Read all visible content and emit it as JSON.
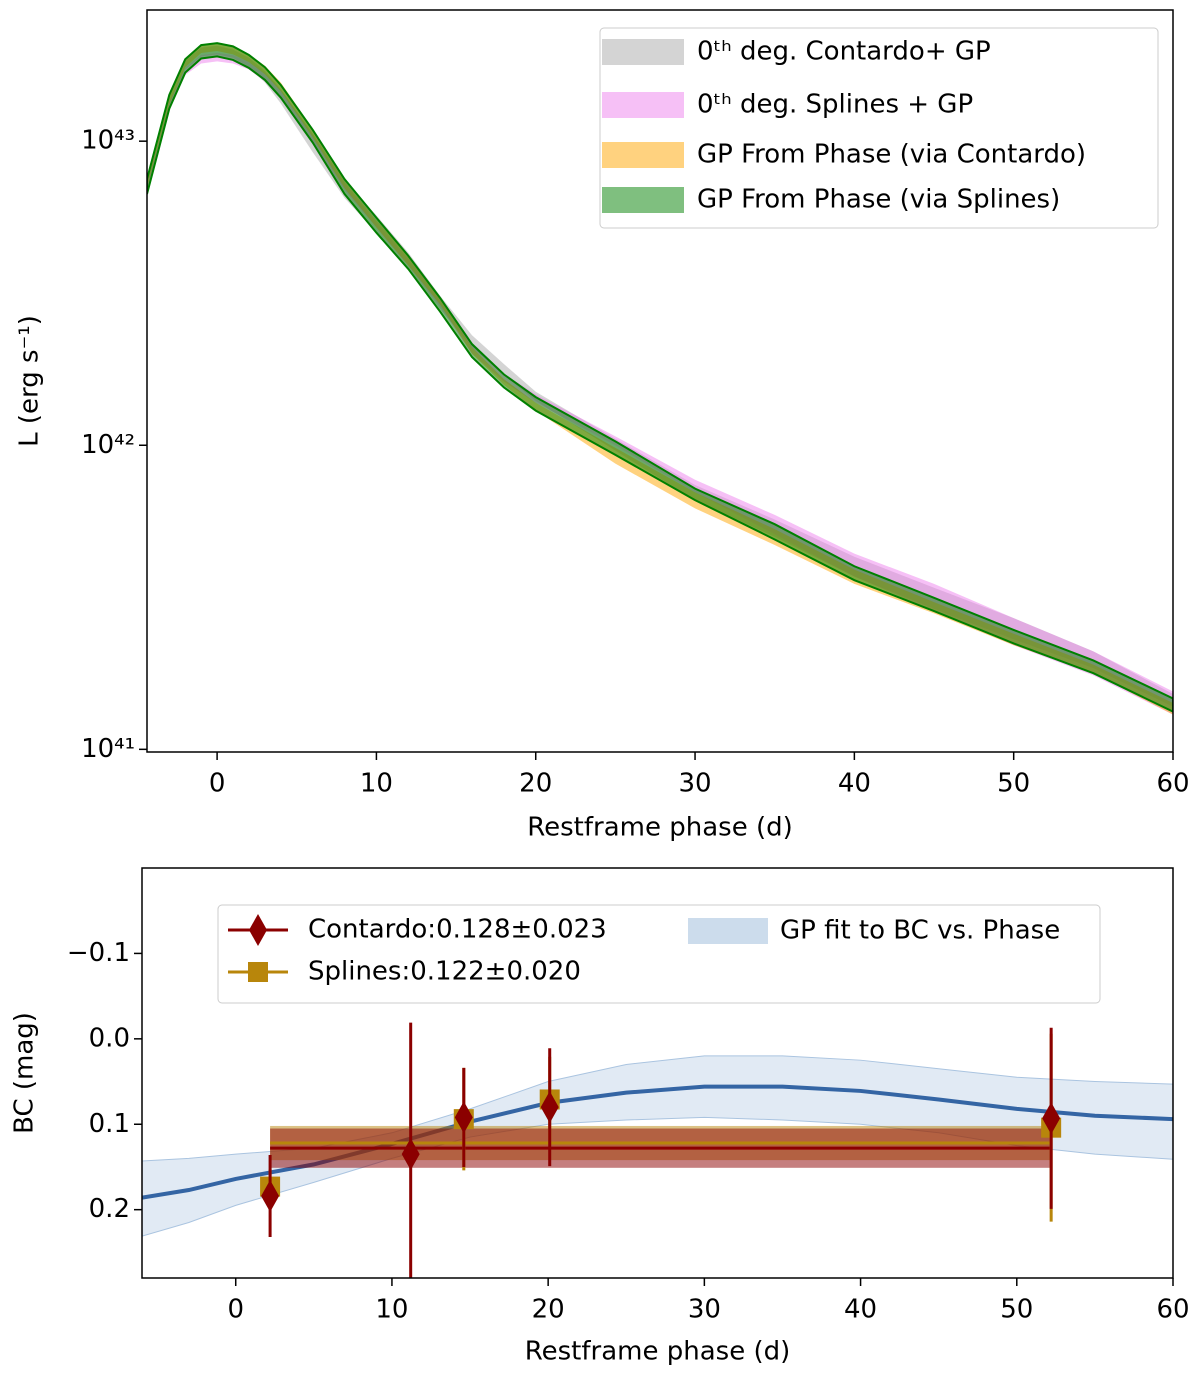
{
  "chart_data": [
    {
      "type": "area",
      "log_y": true,
      "legend": "upper right",
      "xlabel": "Restframe phase (d)",
      "ylabel": "L (erg s⁻¹)",
      "xlim": [
        -4.4,
        60
      ],
      "xticks": [
        0,
        10,
        20,
        30,
        40,
        50,
        60
      ],
      "ylim": [
        9.8e+40,
        2.7e+43
      ],
      "yticks": [
        {
          "value": 1e+41,
          "label": "10⁴¹"
        },
        {
          "value": 1e+42,
          "label": "10⁴²"
        },
        {
          "value": 1e+43,
          "label": "10⁴³"
        }
      ],
      "x": [
        -4.4,
        -3,
        -2,
        -1,
        0,
        1,
        2,
        3,
        4,
        6,
        8,
        10,
        12,
        14,
        16,
        18,
        20,
        25,
        30,
        35,
        40,
        45,
        50,
        55,
        60
      ],
      "series": [
        {
          "name": "0ᵗʰ deg. Contardo+ GP",
          "color": "#aaaaaa",
          "low": [
            6.8e+42,
            1.3e+43,
            1.72e+43,
            1.9e+43,
            1.93e+43,
            1.88e+43,
            1.75e+43,
            1.56e+43,
            1.33e+43,
            9.2e+42,
            6.5e+42,
            5e+42,
            3.8e+42,
            2.8e+42,
            2.1e+42,
            1.7e+42,
            1.4e+42,
            9.6e+41,
            6.6e+41,
            5e+41,
            3.7e+41,
            2.9e+41,
            2.3e+41,
            1.85e+41,
            1.38e+41
          ],
          "high": [
            7.4e+42,
            1.4e+43,
            1.84e+43,
            2.03e+43,
            2.06e+43,
            2e+43,
            1.88e+43,
            1.7e+43,
            1.48e+43,
            1.06e+43,
            7.4e+42,
            5.7e+42,
            4.3e+42,
            3.1e+42,
            2.3e+42,
            1.85e+42,
            1.5e+42,
            1.05e+42,
            7.4e+41,
            5.7e+41,
            4.3e+41,
            3.4e+41,
            2.7e+41,
            2.1e+41,
            1.52e+41
          ]
        },
        {
          "name": "0ᵗʰ deg. Splines + GP",
          "color": "#ee82ee",
          "low": [
            6.9e+42,
            1.28e+43,
            1.65e+43,
            1.8e+43,
            1.83e+43,
            1.8e+43,
            1.72e+43,
            1.57e+43,
            1.38e+43,
            9.9e+42,
            6.9e+42,
            5.2e+42,
            3.9e+42,
            2.85e+42,
            2e+42,
            1.62e+42,
            1.38e+42,
            1e+42,
            7e+41,
            5.1e+41,
            3.7e+41,
            2.85e+41,
            2.2e+41,
            1.75e+41,
            1.3e+41
          ],
          "high": [
            7.3e+42,
            1.35e+43,
            1.74e+43,
            1.92e+43,
            1.95e+43,
            1.92e+43,
            1.82e+43,
            1.67e+43,
            1.47e+43,
            1.05e+43,
            7.3e+42,
            5.4e+42,
            4.1e+42,
            3e+42,
            2.15e+42,
            1.72e+42,
            1.47e+42,
            1.07e+42,
            7.7e+41,
            5.9e+41,
            4.4e+41,
            3.5e+41,
            2.7e+41,
            2.1e+41,
            1.55e+41
          ]
        },
        {
          "name": "GP From Phase (via Contardo)",
          "color": "#ffa500",
          "low": [
            7e+42,
            1.32e+43,
            1.75e+43,
            1.95e+43,
            1.98e+43,
            1.93e+43,
            1.82e+43,
            1.66e+43,
            1.46e+43,
            1.03e+43,
            7e+42,
            5.2e+42,
            3.9e+42,
            2.9e+42,
            2e+42,
            1.58e+42,
            1.3e+42,
            8.7e+41,
            6.2e+41,
            4.7e+41,
            3.5e+41,
            2.8e+41,
            2.2e+41,
            1.78e+41,
            1.3e+41
          ],
          "high": [
            7.4e+42,
            1.4e+43,
            1.86e+43,
            2.06e+43,
            2.09e+43,
            2.04e+43,
            1.93e+43,
            1.77e+43,
            1.56e+43,
            1.1e+43,
            7.4e+42,
            5.5e+42,
            4.2e+42,
            3.05e+42,
            2.1e+42,
            1.65e+42,
            1.38e+42,
            9.8e+41,
            7e+41,
            5.3e+41,
            3.9e+41,
            3.05e+41,
            2.4e+41,
            1.9e+41,
            1.42e+41
          ]
        },
        {
          "name": "GP From Phase (via Splines)",
          "color": "#008000",
          "low": [
            6.7e+42,
            1.28e+43,
            1.68e+43,
            1.87e+43,
            1.9e+43,
            1.85e+43,
            1.74e+43,
            1.59e+43,
            1.39e+43,
            9.9e+42,
            6.7e+42,
            5e+42,
            3.8e+42,
            2.75e+42,
            1.95e+42,
            1.55e+42,
            1.3e+42,
            9.3e+41,
            6.6e+41,
            4.9e+41,
            3.6e+41,
            2.85e+41,
            2.23e+41,
            1.78e+41,
            1.33e+41
          ],
          "high": [
            7.5e+42,
            1.42e+43,
            1.86e+43,
            2.07e+43,
            2.1e+43,
            2.05e+43,
            1.92e+43,
            1.75e+43,
            1.53e+43,
            1.09e+43,
            7.5e+42,
            5.6e+42,
            4.2e+42,
            3.05e+42,
            2.15e+42,
            1.71e+42,
            1.44e+42,
            1.03e+42,
            7.2e+41,
            5.5e+41,
            4e+41,
            3.15e+41,
            2.47e+41,
            1.96e+41,
            1.47e+41
          ]
        }
      ]
    },
    {
      "type": "scatter",
      "y_inverted": true,
      "legend": "upper left",
      "xlabel": "Restframe phase (d)",
      "ylabel": "BC (mag)",
      "xlim": [
        -6,
        60
      ],
      "xticks": [
        0,
        10,
        20,
        30,
        40,
        50,
        60
      ],
      "ylim": [
        -0.2,
        0.28
      ],
      "yticks": [
        {
          "value": -0.1,
          "label": "−0.1"
        },
        {
          "value": 0,
          "label": "0.0"
        },
        0.1,
        0.2
      ],
      "series": [
        {
          "name": "Contardo:0.128±0.023",
          "kind": "errorbar",
          "marker": "diamond",
          "color": "#8b0000",
          "x": [
            2.2,
            11.2,
            14.6,
            20.1,
            52.2
          ],
          "values": [
            0.184,
            0.135,
            0.092,
            0.08,
            0.093
          ],
          "errors": [
            0.048,
            0.154,
            0.058,
            0.069,
            0.106
          ],
          "mean": 0.128,
          "mean_error": 0.023
        },
        {
          "name": "Splines:0.122±0.020",
          "kind": "errorbar",
          "marker": "square",
          "color": "#b8860b",
          "x": [
            2.2,
            14.6,
            20.1,
            52.2
          ],
          "values": [
            0.173,
            0.094,
            0.071,
            0.104
          ],
          "errors": [
            0.02,
            0.06,
            0.05,
            0.11
          ],
          "mean": 0.122,
          "mean_error": 0.02
        },
        {
          "name": "GP fit to BC vs. Phase",
          "kind": "band",
          "color": "#aac4e0",
          "line_color": "#3465a4",
          "x": [
            -6,
            -3,
            0,
            5,
            10,
            15,
            20,
            25,
            30,
            35,
            40,
            45,
            50,
            55,
            60
          ],
          "values": [
            0.186,
            0.177,
            0.164,
            0.147,
            0.123,
            0.097,
            0.075,
            0.063,
            0.056,
            0.056,
            0.061,
            0.071,
            0.082,
            0.09,
            0.094
          ],
          "low": [
            0.143,
            0.14,
            0.135,
            0.128,
            0.11,
            0.082,
            0.05,
            0.03,
            0.02,
            0.02,
            0.025,
            0.035,
            0.045,
            0.05,
            0.053
          ],
          "high": [
            0.231,
            0.215,
            0.195,
            0.168,
            0.14,
            0.115,
            0.1,
            0.095,
            0.092,
            0.095,
            0.1,
            0.11,
            0.125,
            0.135,
            0.141
          ]
        }
      ]
    }
  ]
}
